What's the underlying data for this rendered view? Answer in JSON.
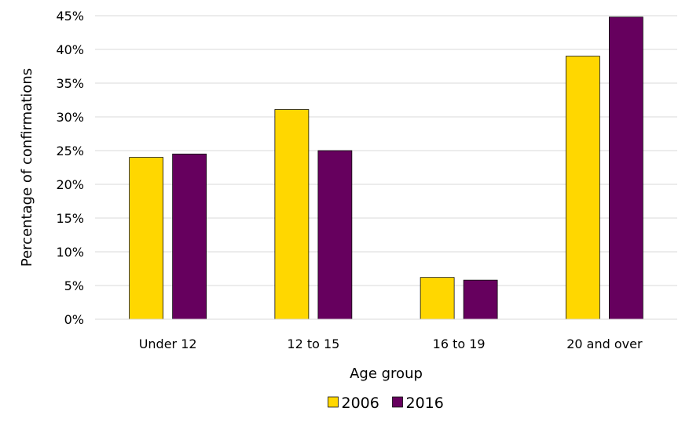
{
  "chart_data": {
    "type": "bar",
    "title": "",
    "xlabel": "Age group",
    "ylabel": "Percentage of confirmations",
    "categories": [
      "Under 12",
      "12 to 15",
      "16 to 19",
      "20 and over"
    ],
    "series": [
      {
        "name": "2006",
        "values": [
          24.0,
          31.1,
          6.2,
          39.0
        ],
        "color": "#FFD700"
      },
      {
        "name": "2016",
        "values": [
          24.5,
          25.0,
          5.8,
          44.8
        ],
        "color": "#66005E"
      }
    ],
    "ylim": [
      0,
      45
    ],
    "yticks": [
      "0%",
      "5%",
      "10%",
      "15%",
      "20%",
      "25%",
      "30%",
      "35%",
      "40%",
      "45%"
    ],
    "ytick_values": [
      0,
      5,
      10,
      15,
      20,
      25,
      30,
      35,
      40,
      45
    ],
    "grid": true,
    "legend_position": "bottom"
  }
}
